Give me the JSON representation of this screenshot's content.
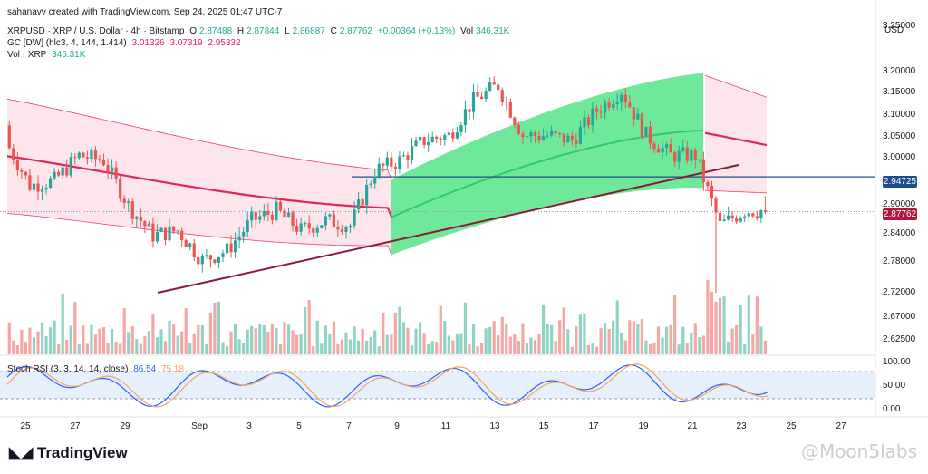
{
  "header": {
    "line1": "sahanavv created with TradingView.com, Sep 24, 2025 01:47 UTC-7",
    "symbol": "XRPUSD · XRP / U.S. Dollar · 4h · Bitstamp",
    "o_label": "O",
    "o": "2.87488",
    "h_label": "H",
    "h": "2.87844",
    "l_label": "L",
    "l": "2.86887",
    "c_label": "C",
    "c": "2.87762",
    "change": "+0.00364 (+0.13%)",
    "vol_label": "Vol",
    "vol": "346.31K",
    "gc_label": "GC [DW] (hlc3, 4, 144, 1.414)",
    "gc1": "3.01326",
    "gc2": "3.07319",
    "gc3": "2.95332",
    "vol2_label": "Vol · XRP",
    "vol2": "346.31K",
    "rsi_label": "Stoch RSI (3, 3, 14, 14, close)",
    "rsi_k": "86.54",
    "rsi_d": "75.18"
  },
  "axis": {
    "currency": "USD",
    "price_ticks": [
      "3.25000",
      "3.20000",
      "3.15000",
      "3.10000",
      "3.05000",
      "3.00000",
      "2.90000",
      "2.84000",
      "2.78000",
      "2.72000",
      "2.67000",
      "2.62500"
    ],
    "rsi_ticks": [
      "100.00",
      "50.00",
      "0.00"
    ],
    "date_ticks": [
      "25",
      "27",
      "29",
      "Sep",
      "3",
      "5",
      "7",
      "9",
      "11",
      "13",
      "15",
      "17",
      "19",
      "21",
      "23",
      "25",
      "27"
    ]
  },
  "tags": {
    "hline": "2.94725",
    "last": "2.87762"
  },
  "brand": "TradingView",
  "watermark": "@Moon5labs",
  "colors": {
    "up": "#26a69a",
    "down": "#ef5350",
    "pink": "#f23d6d",
    "green": "#3fe07a",
    "hline": "#1e4d8c",
    "trend": "#8b1a3a",
    "rsi_k": "#2962ff",
    "rsi_d": "#f7a35c"
  },
  "chart_data": {
    "type": "candlestick",
    "interval": "4h",
    "ylim": [
      2.6,
      3.27
    ],
    "x_range": [
      "Aug 24",
      "Sep 27"
    ],
    "x": [
      "Aug 24",
      "Aug 25",
      "Aug 26",
      "Aug 27",
      "Aug 28",
      "Aug 29",
      "Aug 30",
      "Aug 31",
      "Sep 1",
      "Sep 2",
      "Sep 3",
      "Sep 4",
      "Sep 5",
      "Sep 6",
      "Sep 7",
      "Sep 8",
      "Sep 9",
      "Sep 10",
      "Sep 11",
      "Sep 12",
      "Sep 13",
      "Sep 14",
      "Sep 15",
      "Sep 16",
      "Sep 17",
      "Sep 18",
      "Sep 19",
      "Sep 20",
      "Sep 21",
      "Sep 22",
      "Sep 23",
      "Sep 24"
    ],
    "close": [
      3.02,
      2.93,
      2.94,
      2.99,
      2.98,
      2.89,
      2.83,
      2.84,
      2.78,
      2.8,
      2.86,
      2.88,
      2.84,
      2.86,
      2.85,
      2.96,
      2.98,
      3.02,
      3.03,
      3.1,
      3.13,
      3.03,
      3.03,
      3.02,
      3.08,
      3.12,
      3.03,
      2.99,
      2.99,
      2.85,
      2.88,
      2.88
    ],
    "horizontal_line": 2.94725,
    "last_price": 2.87762,
    "stoch_rsi": {
      "k": 86.54,
      "d": 75.18,
      "range": [
        0,
        100
      ],
      "bands": [
        20,
        80
      ]
    },
    "volume_last": "346.31K"
  }
}
